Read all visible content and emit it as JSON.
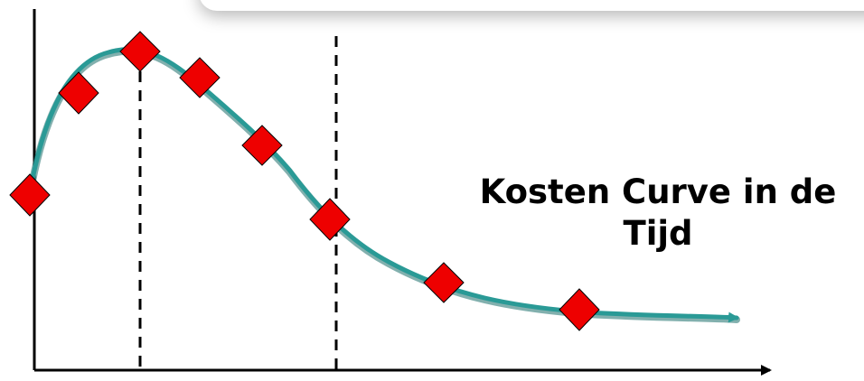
{
  "caption": {
    "line1": "Kosten Curve in de",
    "line2": "Tijd"
  },
  "colors": {
    "curve": "#2a9a96",
    "curve_dark": "#1c6f6c",
    "marker": "#ee0000",
    "axis": "#000000"
  },
  "icons": {
    "marker": "red-diamond",
    "axis_end": "arrowhead"
  }
}
